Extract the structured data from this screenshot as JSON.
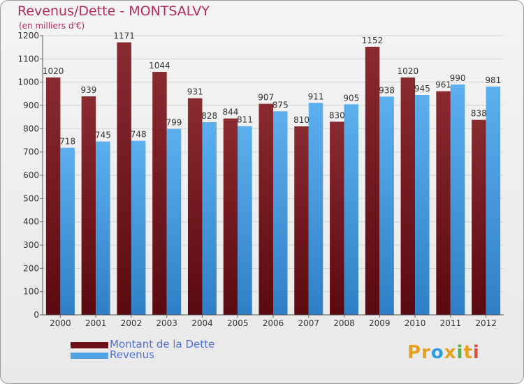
{
  "title": "Revenus/Dette - MONTSALVY",
  "subtitle": "(en milliers d'€)",
  "logo": "Proxiti",
  "legend": [
    {
      "label": "Montant de la Dette",
      "color": "#6e0f19"
    },
    {
      "label": "Revenus",
      "color": "#4fa3e4"
    }
  ],
  "colors": {
    "dette": "#7a1a22",
    "revenus": "#4fa3e4",
    "title": "#b22d55"
  },
  "chart_data": {
    "type": "bar",
    "title": "Revenus/Dette - MONTSALVY",
    "subtitle": "(en milliers d'€)",
    "categories": [
      "2000",
      "2001",
      "2002",
      "2003",
      "2004",
      "2005",
      "2006",
      "2007",
      "2008",
      "2009",
      "2010",
      "2011",
      "2012"
    ],
    "series": [
      {
        "name": "Montant de la Dette",
        "values": [
          1020,
          939,
          1171,
          1044,
          931,
          844,
          907,
          810,
          830,
          1152,
          1020,
          961,
          838
        ]
      },
      {
        "name": "Revenus",
        "values": [
          718,
          745,
          748,
          799,
          828,
          811,
          875,
          911,
          905,
          938,
          945,
          990,
          981
        ]
      }
    ],
    "ylim": [
      0,
      1200
    ],
    "yticks": [
      0,
      100,
      200,
      300,
      400,
      500,
      600,
      700,
      800,
      900,
      1000,
      1100,
      1200
    ],
    "grid": true,
    "legend_position": "bottom-left"
  }
}
